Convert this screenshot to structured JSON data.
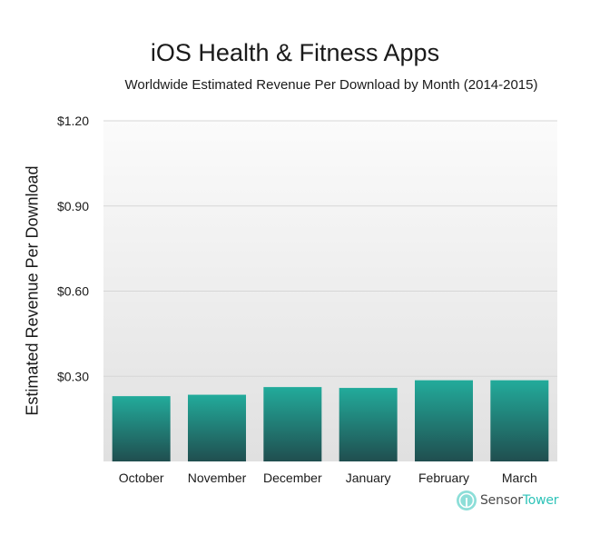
{
  "chart_data": {
    "type": "bar",
    "title": "iOS Health & Fitness Apps",
    "subtitle": "Worldwide Estimated Revenue Per Download by Month (2014-2015)",
    "ylabel": "Estimated Revenue Per Download",
    "xlabel": "",
    "categories": [
      "October",
      "November",
      "December",
      "January",
      "February",
      "March"
    ],
    "values": [
      0.23,
      0.235,
      0.262,
      0.259,
      0.286,
      0.286
    ],
    "ylim": [
      0,
      1.2
    ],
    "yticks": [
      0.3,
      0.6,
      0.9,
      1.2
    ],
    "ytick_labels": [
      "$0.30",
      "$0.60",
      "$0.90",
      "$1.20"
    ],
    "grid": true,
    "legend": "none",
    "colors": {
      "bar_top": "#22ab9b",
      "bar_bottom": "#204e4f",
      "plot_bg_top": "#fbfbfb",
      "plot_bg_bottom": "#e0e0e0",
      "grid": "#d6d6d6"
    }
  },
  "logo": {
    "icon": "sensor-tower-icon",
    "sensor": "Sensor",
    "tower": "Tower"
  }
}
